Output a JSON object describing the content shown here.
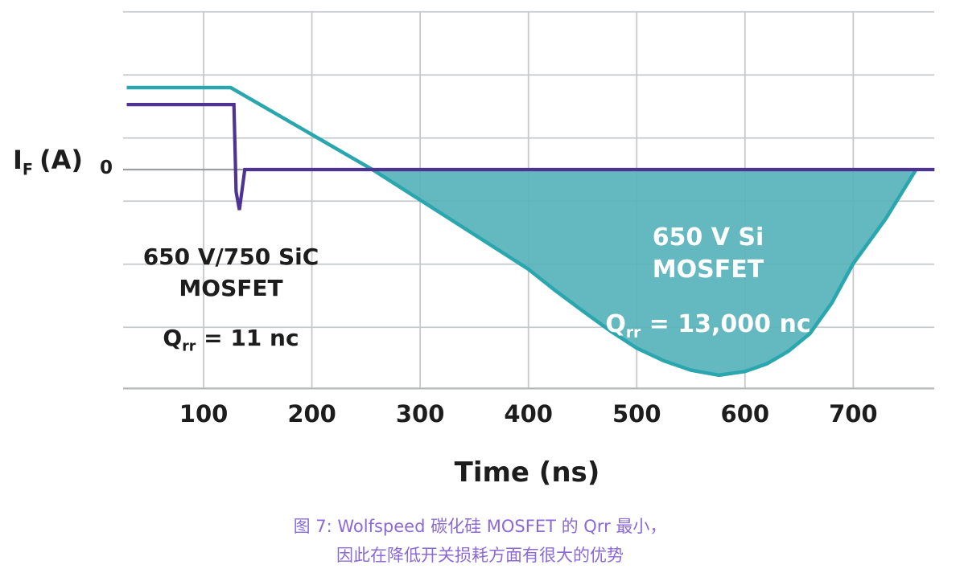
{
  "figure": {
    "caption": {
      "line1": "图 7: Wolfspeed 碳化硅 MOSFET 的 Qrr 最小，",
      "line2": "因此在降低开关损耗方面有很大的优势",
      "color": "#8a6ad6"
    }
  },
  "chart_data": {
    "type": "line",
    "title": "",
    "xlabel": "Time (ns)",
    "ylabel": "I_F (A)",
    "ylabel_parts": {
      "symbol": "I",
      "sub": "F",
      "unit": "(A)"
    },
    "y_zero_label": "0",
    "x_ticks": [
      100,
      200,
      300,
      400,
      500,
      600,
      700
    ],
    "x_range_ns": [
      29,
      775
    ],
    "grid": true,
    "y_axis_note": "vertical axis unlabeled except 0; series values given in grid divisions",
    "y_gridlines_div": [
      2.5,
      1.5,
      0.5,
      -0.5,
      -1.5,
      -2.5
    ],
    "y_range_div": [
      -3.47,
      2.51
    ],
    "colors": {
      "grid": "#c6c9cc",
      "axis": "#b4b7ba",
      "zero_line": "#9b9ea1",
      "tick_text": "#1d1d1d"
    },
    "series": [
      {
        "name": "650 V/750 SiC MOSFET",
        "color": "#4e3392",
        "qrr": "11 nc",
        "points_t_ns_vs_div": [
          [
            29,
            1.03
          ],
          [
            128,
            1.03
          ],
          [
            130,
            -0.35
          ],
          [
            133,
            -0.64
          ],
          [
            138,
            0
          ],
          [
            775,
            0
          ]
        ]
      },
      {
        "name": "650 V Si MOSFET",
        "color": "#2aa7ae",
        "fill_color": "#57b2ba",
        "fill_below_zero": true,
        "qrr": "13,000 nc",
        "points_t_ns_vs_div": [
          [
            29,
            1.3
          ],
          [
            125,
            1.3
          ],
          [
            256,
            0
          ],
          [
            330,
            -0.81
          ],
          [
            400,
            -1.58
          ],
          [
            425,
            -1.92
          ],
          [
            450,
            -2.24
          ],
          [
            475,
            -2.55
          ],
          [
            500,
            -2.83
          ],
          [
            525,
            -3.03
          ],
          [
            550,
            -3.18
          ],
          [
            576,
            -3.26
          ],
          [
            600,
            -3.2
          ],
          [
            620,
            -3.08
          ],
          [
            640,
            -2.88
          ],
          [
            660,
            -2.6
          ],
          [
            680,
            -2.12
          ],
          [
            700,
            -1.49
          ],
          [
            730,
            -0.78
          ],
          [
            758,
            0
          ]
        ]
      }
    ],
    "annotations": [
      {
        "id": "sic_box",
        "line1": "650 V/750 SiC",
        "line2": "MOSFET",
        "q_symbol": "Q",
        "q_sub": "rr",
        "q_value": " = 11 nc",
        "bg_color": "#d9e6f1",
        "text_color": "#1d1d1d"
      },
      {
        "id": "si_label",
        "line1": "650 V Si",
        "line2": "MOSFET",
        "q_symbol": "Q",
        "q_sub": "rr",
        "q_value": " = 13,000 nc",
        "text_color": "#ffffff"
      }
    ]
  }
}
